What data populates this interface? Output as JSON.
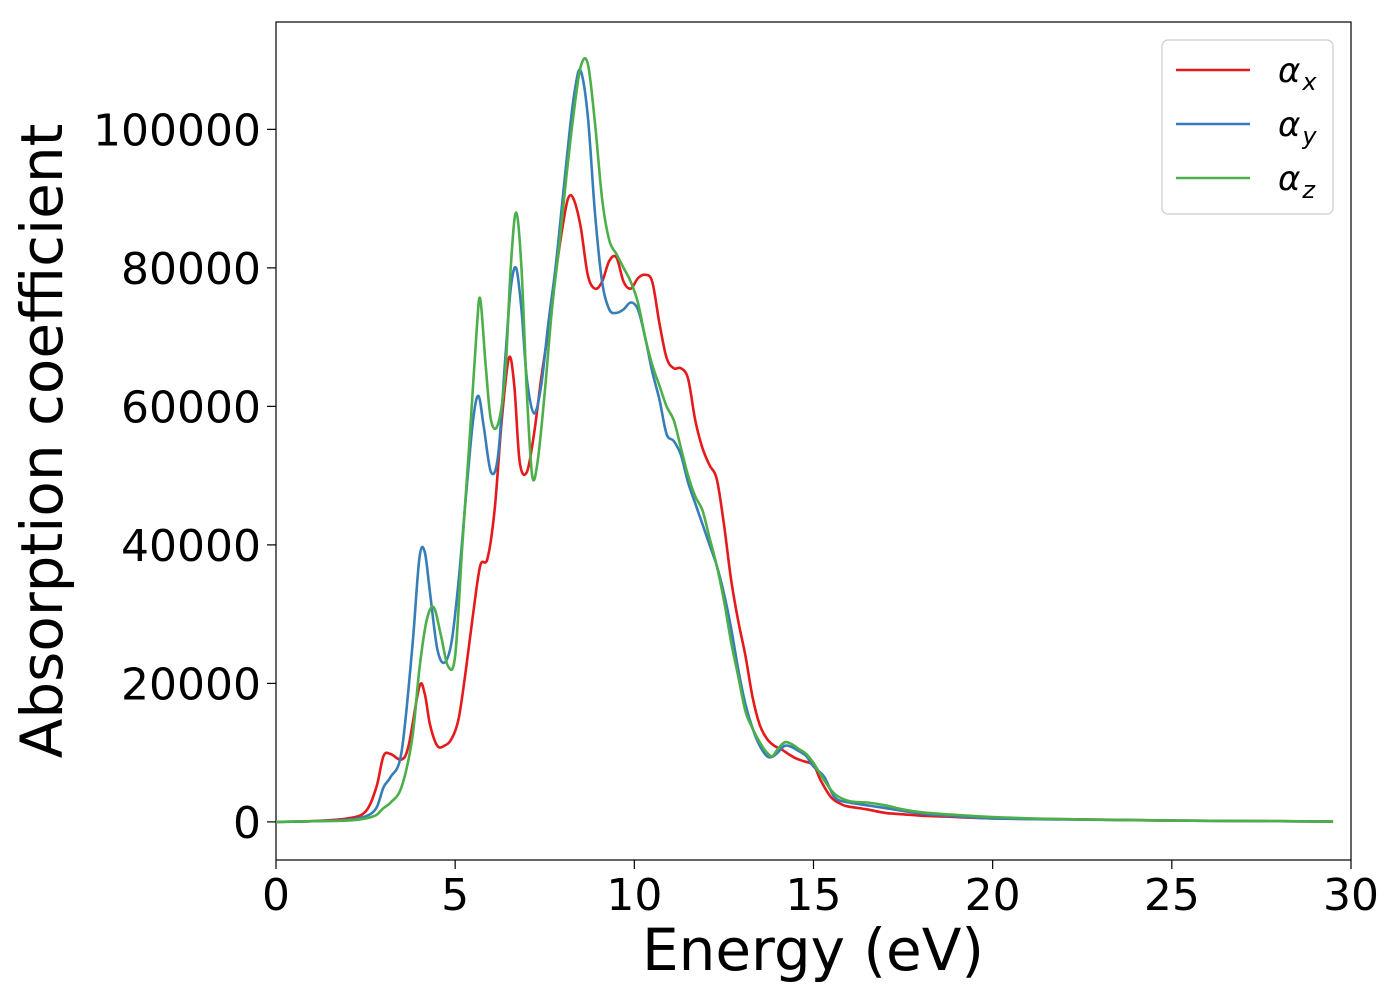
{
  "chart_data": {
    "type": "line",
    "title": "",
    "xlabel": "Energy (eV)",
    "ylabel": "Absorption coefficient",
    "xlim": [
      0,
      30
    ],
    "ylim": [
      -5500,
      115500
    ],
    "xticks": [
      0,
      5,
      10,
      15,
      20,
      25,
      30
    ],
    "yticks": [
      0,
      20000,
      40000,
      60000,
      80000,
      100000
    ],
    "xtick_labels": [
      "0",
      "5",
      "10",
      "15",
      "20",
      "25",
      "30"
    ],
    "ytick_labels": [
      "0",
      "20000",
      "40000",
      "60000",
      "80000",
      "100000"
    ],
    "grid": false,
    "legend_position": "top-right",
    "series": [
      {
        "name": "α",
        "subscript": "x",
        "color": "#e41a1c",
        "x": [
          0,
          1,
          2,
          2.5,
          2.8,
          3.0,
          3.2,
          3.5,
          3.7,
          4.0,
          4.15,
          4.3,
          4.5,
          4.7,
          4.9,
          5.1,
          5.3,
          5.5,
          5.7,
          5.9,
          6.1,
          6.3,
          6.5,
          6.65,
          6.8,
          7.0,
          7.2,
          7.4,
          7.6,
          7.8,
          8.0,
          8.15,
          8.3,
          8.5,
          8.7,
          8.9,
          9.1,
          9.3,
          9.5,
          9.7,
          9.9,
          10.1,
          10.3,
          10.5,
          10.7,
          10.9,
          11.1,
          11.3,
          11.5,
          11.7,
          11.9,
          12.1,
          12.3,
          12.5,
          12.7,
          12.9,
          13.1,
          13.3,
          13.5,
          13.7,
          13.9,
          14.1,
          14.3,
          14.5,
          14.7,
          15.0,
          15.2,
          15.5,
          15.8,
          16.0,
          16.5,
          17.0,
          17.5,
          18.0,
          19.0,
          20.0,
          22.0,
          25.0,
          28.0,
          29.5
        ],
        "y": [
          0,
          100,
          500,
          1500,
          5000,
          9500,
          9800,
          9000,
          11000,
          19500,
          18500,
          14000,
          11000,
          11000,
          12000,
          15000,
          22000,
          30000,
          37000,
          38000,
          45000,
          58000,
          67000,
          63000,
          52000,
          50500,
          56000,
          64000,
          71000,
          79000,
          86000,
          90000,
          90000,
          86000,
          79000,
          77000,
          78000,
          81000,
          81500,
          78000,
          77000,
          78500,
          79000,
          78000,
          72000,
          67000,
          65500,
          65500,
          64000,
          58000,
          54000,
          51500,
          49500,
          43000,
          35000,
          29000,
          24000,
          18000,
          14000,
          12000,
          11000,
          10500,
          9800,
          9200,
          8800,
          8200,
          6000,
          3500,
          2500,
          2200,
          1800,
          1300,
          1100,
          900,
          700,
          500,
          400,
          200,
          100,
          50
        ]
      },
      {
        "name": "α",
        "subscript": "y",
        "color": "#377eb8",
        "x": [
          0,
          1,
          2,
          2.5,
          2.8,
          3.0,
          3.2,
          3.5,
          3.8,
          4.0,
          4.15,
          4.3,
          4.5,
          4.7,
          4.9,
          5.1,
          5.3,
          5.5,
          5.65,
          5.8,
          6.0,
          6.2,
          6.4,
          6.55,
          6.7,
          6.85,
          7.0,
          7.2,
          7.4,
          7.6,
          7.8,
          8.0,
          8.2,
          8.35,
          8.5,
          8.7,
          8.9,
          9.1,
          9.3,
          9.5,
          9.7,
          9.9,
          10.1,
          10.3,
          10.5,
          10.7,
          10.9,
          11.1,
          11.3,
          11.5,
          11.7,
          11.9,
          12.1,
          12.3,
          12.5,
          12.7,
          12.9,
          13.1,
          13.3,
          13.5,
          13.7,
          13.85,
          14.0,
          14.2,
          14.4,
          14.6,
          14.8,
          15.0,
          15.3,
          15.6,
          16.0,
          16.5,
          17.0,
          18.0,
          19.0,
          20.0,
          22.0,
          25.0,
          28.0,
          29.5
        ],
        "y": [
          0,
          100,
          300,
          800,
          2000,
          5000,
          6500,
          10000,
          25000,
          38000,
          39000,
          33000,
          25000,
          23000,
          26000,
          35000,
          47000,
          58000,
          61500,
          57000,
          50500,
          53000,
          67000,
          77000,
          80000,
          74000,
          64000,
          59000,
          63000,
          72000,
          80000,
          90000,
          100000,
          106000,
          108500,
          102000,
          88000,
          78000,
          74000,
          73500,
          74000,
          75000,
          74000,
          70000,
          65000,
          61000,
          56000,
          55000,
          53000,
          49000,
          46000,
          43000,
          40000,
          37000,
          33000,
          28000,
          22000,
          17000,
          13500,
          11000,
          9500,
          9400,
          10000,
          11000,
          10800,
          10200,
          9500,
          8000,
          6500,
          3500,
          2800,
          2400,
          2000,
          1200,
          800,
          500,
          350,
          200,
          100,
          50
        ]
      },
      {
        "name": "α",
        "subscript": "z",
        "color": "#4daf4a",
        "x": [
          0,
          1,
          2,
          2.5,
          2.8,
          3.0,
          3.2,
          3.5,
          3.8,
          4.0,
          4.2,
          4.4,
          4.6,
          4.8,
          5.0,
          5.2,
          5.4,
          5.6,
          5.7,
          5.85,
          6.0,
          6.2,
          6.4,
          6.55,
          6.7,
          6.85,
          7.0,
          7.15,
          7.3,
          7.5,
          7.7,
          7.9,
          8.1,
          8.3,
          8.5,
          8.7,
          8.9,
          9.1,
          9.3,
          9.5,
          9.7,
          9.9,
          10.1,
          10.3,
          10.5,
          10.7,
          10.9,
          11.1,
          11.3,
          11.5,
          11.7,
          11.9,
          12.1,
          12.3,
          12.5,
          12.7,
          12.9,
          13.1,
          13.3,
          13.5,
          13.7,
          13.85,
          14.0,
          14.2,
          14.4,
          14.6,
          14.8,
          15.0,
          15.3,
          15.6,
          16.0,
          16.5,
          17.0,
          17.5,
          18.0,
          19.0,
          20.0,
          22.0,
          25.0,
          28.0,
          29.5
        ],
        "y": [
          0,
          100,
          200,
          500,
          1000,
          2000,
          2800,
          5000,
          12000,
          22000,
          29000,
          31000,
          27000,
          22500,
          24000,
          40000,
          55000,
          71000,
          75500,
          66000,
          58000,
          57500,
          65000,
          80000,
          88000,
          80000,
          62000,
          50000,
          52000,
          62000,
          74000,
          83000,
          93000,
          102000,
          109000,
          109500,
          101000,
          90000,
          84000,
          82000,
          80000,
          78000,
          75000,
          70000,
          66000,
          63000,
          60000,
          58000,
          54000,
          50000,
          47000,
          45000,
          41000,
          37000,
          32000,
          26000,
          21000,
          16000,
          13500,
          11500,
          10000,
          9500,
          10500,
          11500,
          11200,
          10500,
          9800,
          8500,
          6000,
          4000,
          3000,
          2800,
          2400,
          1800,
          1400,
          1000,
          700,
          400,
          200,
          100,
          50
        ]
      }
    ]
  }
}
